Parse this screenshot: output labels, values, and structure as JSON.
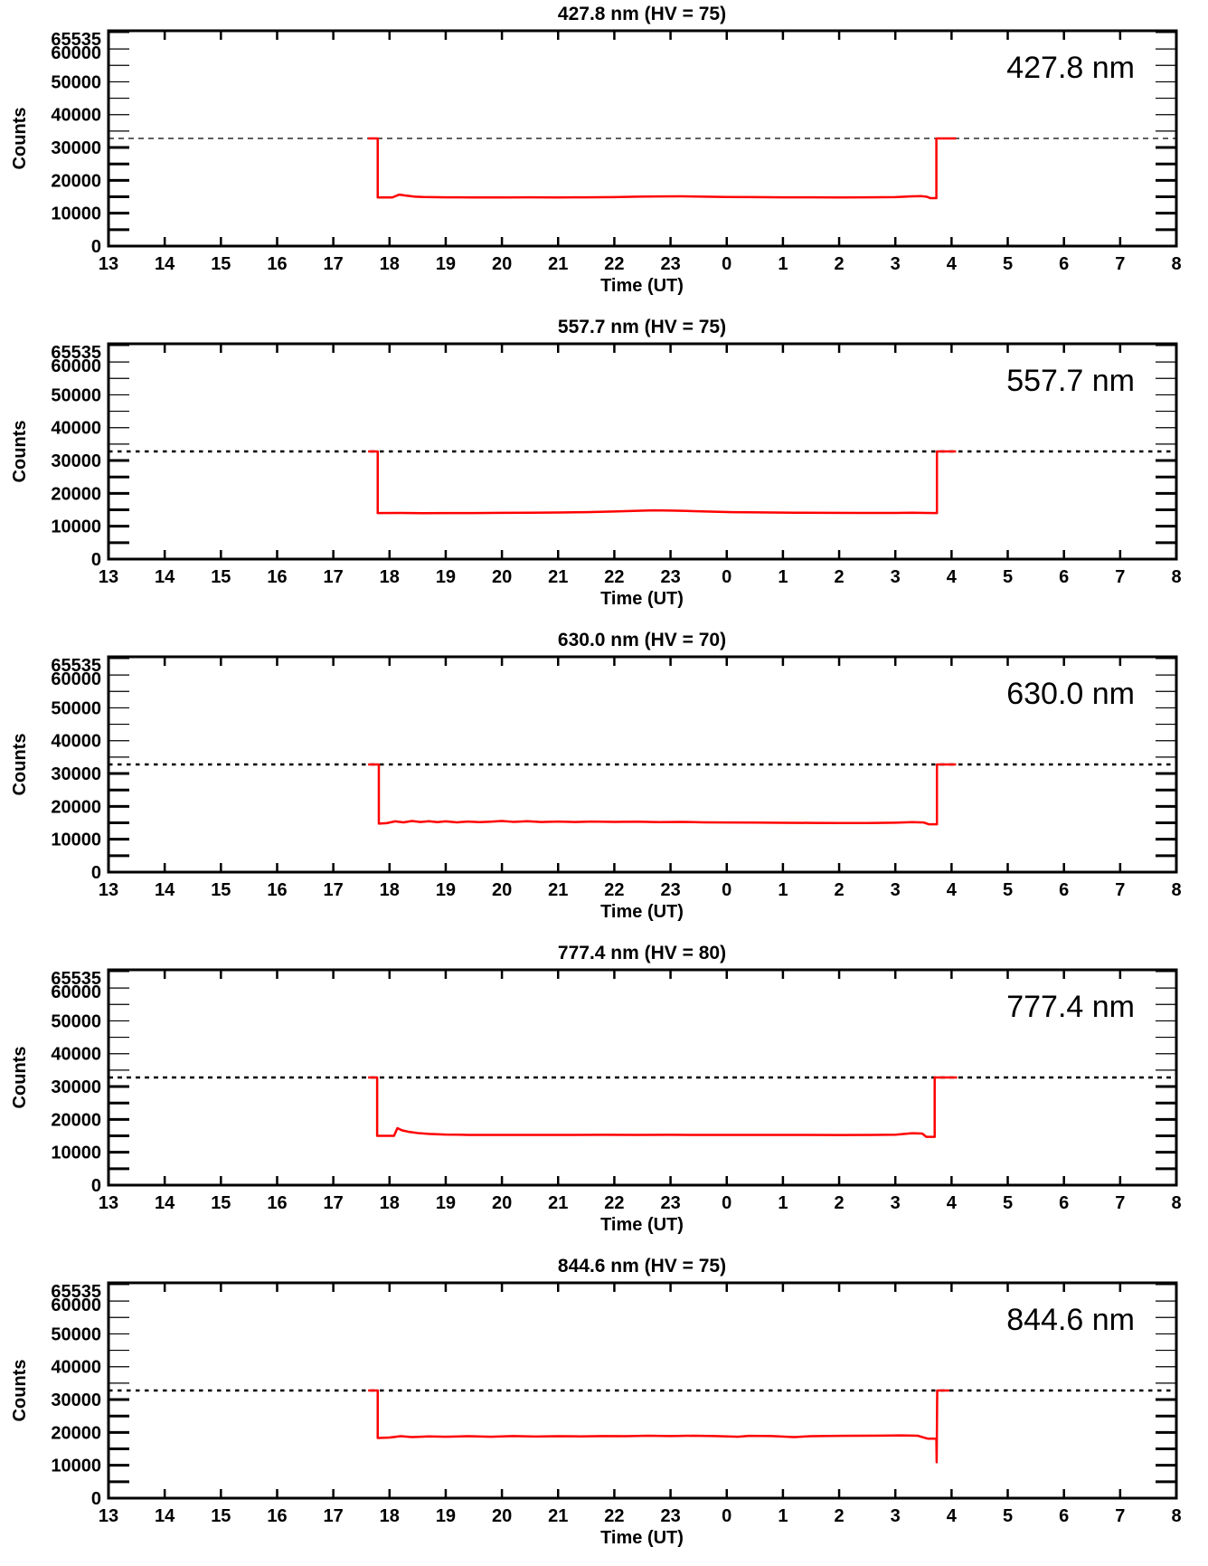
{
  "page": {
    "background": "#ffffff",
    "figure_name": "photometer-counts-multipanel"
  },
  "chart_data": [
    {
      "type": "line",
      "title": "427.8 nm (HV = 75)",
      "inplot_label": "427.8 nm",
      "xlabel": "Time (UT)",
      "ylabel": "Counts",
      "ylim": [
        0,
        65535
      ],
      "yticks_labeled": [
        0,
        10000,
        20000,
        30000,
        40000,
        50000,
        60000,
        65535
      ],
      "ytick_minor_step": 5000,
      "x_start_hour": 13,
      "x_end_hour": 32,
      "xtick_labels": [
        "13",
        "14",
        "15",
        "16",
        "17",
        "18",
        "19",
        "20",
        "21",
        "22",
        "23",
        "0",
        "1",
        "2",
        "3",
        "4",
        "5",
        "6",
        "7",
        "8"
      ],
      "threshold": 32768,
      "threshold_style": {
        "width": 1.3,
        "dash": "6 5",
        "color": "#000000"
      },
      "line_color": "#ff0000",
      "series": [
        [
          17.62,
          32768
        ],
        [
          17.79,
          32768
        ],
        [
          17.79,
          14800
        ],
        [
          18.05,
          14800
        ],
        [
          18.17,
          15650
        ],
        [
          18.3,
          15350
        ],
        [
          18.45,
          15050
        ],
        [
          18.6,
          14950
        ],
        [
          19.0,
          14850
        ],
        [
          19.5,
          14800
        ],
        [
          20.0,
          14800
        ],
        [
          20.5,
          14820
        ],
        [
          21.0,
          14800
        ],
        [
          21.5,
          14830
        ],
        [
          22.0,
          14900
        ],
        [
          22.4,
          15050
        ],
        [
          22.8,
          15120
        ],
        [
          23.2,
          15150
        ],
        [
          23.6,
          15050
        ],
        [
          24.0,
          14950
        ],
        [
          24.5,
          14900
        ],
        [
          25.0,
          14850
        ],
        [
          25.5,
          14820
        ],
        [
          26.0,
          14800
        ],
        [
          26.5,
          14820
        ],
        [
          27.0,
          14900
        ],
        [
          27.3,
          15150
        ],
        [
          27.45,
          15200
        ],
        [
          27.55,
          15050
        ],
        [
          27.62,
          14600
        ],
        [
          27.73,
          14600
        ],
        [
          27.73,
          32768
        ],
        [
          28.08,
          32768
        ]
      ]
    },
    {
      "type": "line",
      "title": "557.7 nm (HV = 75)",
      "inplot_label": "557.7 nm",
      "xlabel": "Time (UT)",
      "ylabel": "Counts",
      "ylim": [
        0,
        65535
      ],
      "yticks_labeled": [
        0,
        10000,
        20000,
        30000,
        40000,
        50000,
        60000,
        65535
      ],
      "ytick_minor_step": 5000,
      "x_start_hour": 13,
      "x_end_hour": 32,
      "xtick_labels": [
        "13",
        "14",
        "15",
        "16",
        "17",
        "18",
        "19",
        "20",
        "21",
        "22",
        "23",
        "0",
        "1",
        "2",
        "3",
        "4",
        "5",
        "6",
        "7",
        "8"
      ],
      "threshold": 32768,
      "threshold_style": {
        "width": 2.6,
        "dash": "4.5 5.5",
        "color": "#000000"
      },
      "line_color": "#ff0000",
      "series": [
        [
          17.62,
          32768
        ],
        [
          17.79,
          32768
        ],
        [
          17.79,
          14000
        ],
        [
          18.2,
          14050
        ],
        [
          18.6,
          13980
        ],
        [
          19.0,
          14020
        ],
        [
          19.5,
          14000
        ],
        [
          20.0,
          14080
        ],
        [
          20.5,
          14120
        ],
        [
          21.0,
          14180
        ],
        [
          21.5,
          14280
        ],
        [
          22.0,
          14480
        ],
        [
          22.4,
          14700
        ],
        [
          22.7,
          14830
        ],
        [
          23.0,
          14780
        ],
        [
          23.3,
          14650
        ],
        [
          23.7,
          14450
        ],
        [
          24.1,
          14300
        ],
        [
          24.6,
          14200
        ],
        [
          25.2,
          14120
        ],
        [
          25.8,
          14080
        ],
        [
          26.4,
          14050
        ],
        [
          27.0,
          14050
        ],
        [
          27.3,
          14120
        ],
        [
          27.55,
          14050
        ],
        [
          27.74,
          14020
        ],
        [
          27.74,
          32768
        ],
        [
          28.08,
          32768
        ]
      ]
    },
    {
      "type": "line",
      "title": "630.0 nm (HV = 70)",
      "inplot_label": "630.0 nm",
      "xlabel": "Time (UT)",
      "ylabel": "Counts",
      "ylim": [
        0,
        65535
      ],
      "yticks_labeled": [
        0,
        10000,
        20000,
        30000,
        40000,
        50000,
        60000,
        65535
      ],
      "ytick_minor_step": 5000,
      "x_start_hour": 13,
      "x_end_hour": 32,
      "xtick_labels": [
        "13",
        "14",
        "15",
        "16",
        "17",
        "18",
        "19",
        "20",
        "21",
        "22",
        "23",
        "0",
        "1",
        "2",
        "3",
        "4",
        "5",
        "6",
        "7",
        "8"
      ],
      "threshold": 32768,
      "threshold_style": {
        "width": 2.6,
        "dash": "4.5 5.5",
        "color": "#000000"
      },
      "line_color": "#ff0000",
      "series": [
        [
          17.62,
          32768
        ],
        [
          17.81,
          32768
        ],
        [
          17.81,
          14750
        ],
        [
          17.95,
          14900
        ],
        [
          18.1,
          15450
        ],
        [
          18.25,
          15150
        ],
        [
          18.4,
          15550
        ],
        [
          18.55,
          15250
        ],
        [
          18.7,
          15500
        ],
        [
          18.85,
          15200
        ],
        [
          19.0,
          15450
        ],
        [
          19.2,
          15150
        ],
        [
          19.4,
          15400
        ],
        [
          19.6,
          15200
        ],
        [
          19.8,
          15350
        ],
        [
          20.0,
          15550
        ],
        [
          20.2,
          15300
        ],
        [
          20.45,
          15500
        ],
        [
          20.7,
          15250
        ],
        [
          21.0,
          15400
        ],
        [
          21.3,
          15250
        ],
        [
          21.6,
          15380
        ],
        [
          22.0,
          15280
        ],
        [
          22.4,
          15350
        ],
        [
          22.8,
          15200
        ],
        [
          23.2,
          15280
        ],
        [
          23.6,
          15150
        ],
        [
          24.0,
          15120
        ],
        [
          24.5,
          15080
        ],
        [
          25.0,
          15020
        ],
        [
          25.5,
          14980
        ],
        [
          26.0,
          14950
        ],
        [
          26.5,
          14950
        ],
        [
          27.0,
          15050
        ],
        [
          27.3,
          15200
        ],
        [
          27.5,
          15120
        ],
        [
          27.6,
          14550
        ],
        [
          27.74,
          14550
        ],
        [
          27.74,
          32768
        ],
        [
          28.08,
          32768
        ]
      ]
    },
    {
      "type": "line",
      "title": "777.4 nm (HV = 80)",
      "inplot_label": "777.4 nm",
      "xlabel": "Time (UT)",
      "ylabel": "Counts",
      "ylim": [
        0,
        65535
      ],
      "yticks_labeled": [
        0,
        10000,
        20000,
        30000,
        40000,
        50000,
        60000,
        65535
      ],
      "ytick_minor_step": 5000,
      "x_start_hour": 13,
      "x_end_hour": 32,
      "xtick_labels": [
        "13",
        "14",
        "15",
        "16",
        "17",
        "18",
        "19",
        "20",
        "21",
        "22",
        "23",
        "0",
        "1",
        "2",
        "3",
        "4",
        "5",
        "6",
        "7",
        "8"
      ],
      "threshold": 32768,
      "threshold_style": {
        "width": 2.4,
        "dash": "5 5",
        "color": "#000000"
      },
      "line_color": "#ff0000",
      "series": [
        [
          17.62,
          32768
        ],
        [
          17.78,
          32768
        ],
        [
          17.78,
          15000
        ],
        [
          18.08,
          15000
        ],
        [
          18.14,
          17350
        ],
        [
          18.22,
          16700
        ],
        [
          18.35,
          16200
        ],
        [
          18.5,
          15850
        ],
        [
          18.7,
          15600
        ],
        [
          19.0,
          15400
        ],
        [
          19.4,
          15300
        ],
        [
          20.0,
          15280
        ],
        [
          20.6,
          15300
        ],
        [
          21.2,
          15280
        ],
        [
          21.8,
          15320
        ],
        [
          22.4,
          15300
        ],
        [
          23.0,
          15320
        ],
        [
          23.6,
          15280
        ],
        [
          24.2,
          15300
        ],
        [
          24.8,
          15280
        ],
        [
          25.4,
          15300
        ],
        [
          26.0,
          15250
        ],
        [
          26.6,
          15280
        ],
        [
          27.0,
          15350
        ],
        [
          27.3,
          15800
        ],
        [
          27.48,
          15700
        ],
        [
          27.55,
          14700
        ],
        [
          27.7,
          14700
        ],
        [
          27.7,
          32768
        ],
        [
          28.1,
          32768
        ]
      ]
    },
    {
      "type": "line",
      "title": "844.6 nm (HV = 75)",
      "inplot_label": "844.6 nm",
      "xlabel": "Time (UT)",
      "ylabel": "Counts",
      "ylim": [
        0,
        65535
      ],
      "yticks_labeled": [
        0,
        10000,
        20000,
        30000,
        40000,
        50000,
        60000,
        65535
      ],
      "ytick_minor_step": 5000,
      "x_start_hour": 13,
      "x_end_hour": 32,
      "xtick_labels": [
        "13",
        "14",
        "15",
        "16",
        "17",
        "18",
        "19",
        "20",
        "21",
        "22",
        "23",
        "0",
        "1",
        "2",
        "3",
        "4",
        "5",
        "6",
        "7",
        "8"
      ],
      "threshold": 32768,
      "threshold_style": {
        "width": 2.6,
        "dash": "4.5 5.5",
        "color": "#000000"
      },
      "line_color": "#ff0000",
      "series": [
        [
          17.62,
          32768
        ],
        [
          17.79,
          32768
        ],
        [
          17.79,
          18300
        ],
        [
          18.0,
          18450
        ],
        [
          18.2,
          18850
        ],
        [
          18.4,
          18600
        ],
        [
          18.7,
          18800
        ],
        [
          19.0,
          18700
        ],
        [
          19.4,
          18850
        ],
        [
          19.8,
          18700
        ],
        [
          20.2,
          18900
        ],
        [
          20.6,
          18750
        ],
        [
          21.0,
          18850
        ],
        [
          21.4,
          18800
        ],
        [
          21.8,
          18900
        ],
        [
          22.2,
          18850
        ],
        [
          22.6,
          19000
        ],
        [
          23.0,
          18900
        ],
        [
          23.4,
          19000
        ],
        [
          23.8,
          18900
        ],
        [
          24.2,
          18700
        ],
        [
          24.4,
          18950
        ],
        [
          24.8,
          18900
        ],
        [
          25.2,
          18600
        ],
        [
          25.5,
          18850
        ],
        [
          26.0,
          18950
        ],
        [
          26.4,
          19000
        ],
        [
          26.8,
          19050
        ],
        [
          27.1,
          19100
        ],
        [
          27.4,
          19000
        ],
        [
          27.58,
          18100
        ],
        [
          27.73,
          18100
        ],
        [
          27.735,
          10900
        ],
        [
          27.745,
          32768
        ],
        [
          27.96,
          32768
        ]
      ]
    }
  ]
}
